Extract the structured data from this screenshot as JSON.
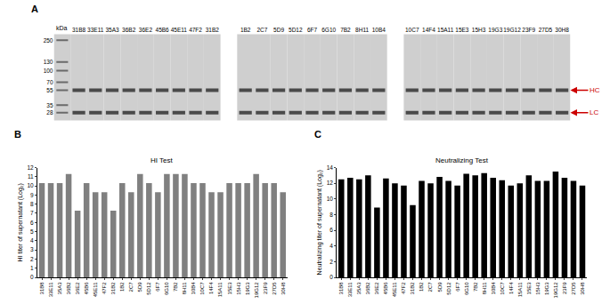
{
  "chart_data": [
    {
      "type": "gel",
      "panel": "A",
      "ylabel": "kDa",
      "categories": [
        null,
        "31B8",
        "33E11",
        "35A3",
        "36B2",
        "36E2",
        "45B6",
        "45E11",
        "47F2",
        "31B2",
        null,
        "1B2",
        "2C7",
        "5D9",
        "5D12",
        "6F7",
        "6G10",
        "7B2",
        "8H11",
        "10B4",
        null,
        "10C7",
        "14F4",
        "15A11",
        "15E3",
        "15H3",
        "19G3",
        "19G12",
        "23F9",
        "27D5",
        "30H8"
      ],
      "log": "y",
      "ylim": [
        22,
        300
      ],
      "yticks": [
        250,
        130,
        100,
        70,
        55,
        35,
        28
      ],
      "bands": [
        {
          "label": "HC",
          "value": 55
        },
        {
          "label": "LC",
          "value": 28
        }
      ]
    },
    {
      "type": "bar",
      "panel": "B",
      "title": "HI Test",
      "ylabel": "HI titer of supernatant (Log₂)",
      "categories": [
        "31B8",
        "33E11",
        "35A3",
        "36B2",
        "36E2",
        "45B6",
        "45E11",
        "47F2",
        "31B2",
        "1B2",
        "2C7",
        "5D9",
        "5D12",
        "6F7",
        "6G10",
        "7B2",
        "8H11",
        "10B4",
        "10C7",
        "14F4",
        "15A11",
        "15E3",
        "15H3",
        "19G3",
        "19G12",
        "23F9",
        "27D5",
        "30H8"
      ],
      "values": [
        10.3,
        10.3,
        10.3,
        11.3,
        7.3,
        10.3,
        9.3,
        9.3,
        7.3,
        10.3,
        9.3,
        11.3,
        10.3,
        9.3,
        11.3,
        11.3,
        11.3,
        10.3,
        10.3,
        9.3,
        9.3,
        10.3,
        10.3,
        10.3,
        11.3,
        10.3,
        10.3,
        9.3
      ],
      "color": "#808080",
      "ylim": [
        0,
        12
      ],
      "yticks": [
        0,
        1,
        2,
        3,
        4,
        5,
        6,
        7,
        8,
        9,
        10,
        11,
        12
      ]
    },
    {
      "type": "bar",
      "panel": "C",
      "title": "Neutralizing Test",
      "ylabel": "Neutralizing titer of supernatant (Log₂)",
      "categories": [
        "31B8",
        "33E11",
        "35A3",
        "36B2",
        "36E2",
        "45B6",
        "45E11",
        "47F2",
        "31B2",
        "1B2",
        "2C7",
        "5D9",
        "5D12",
        "6F7",
        "6G10",
        "7B2",
        "8H11",
        "10B4",
        "10C7",
        "14F4",
        "15A11",
        "15E3",
        "15H3",
        "19G3",
        "19G12",
        "23F9",
        "27D5",
        "30H8"
      ],
      "values": [
        12.5,
        12.7,
        12.5,
        13.0,
        8.9,
        12.6,
        12.0,
        11.7,
        9.2,
        12.3,
        12.0,
        12.8,
        12.3,
        11.7,
        13.2,
        13.0,
        13.3,
        12.7,
        12.4,
        11.7,
        12.0,
        13.0,
        12.3,
        12.3,
        13.5,
        12.7,
        12.3,
        11.7
      ],
      "color": "#000000",
      "ylim": [
        0,
        14
      ],
      "yticks": [
        0,
        2,
        4,
        6,
        8,
        10,
        12,
        14
      ]
    }
  ]
}
